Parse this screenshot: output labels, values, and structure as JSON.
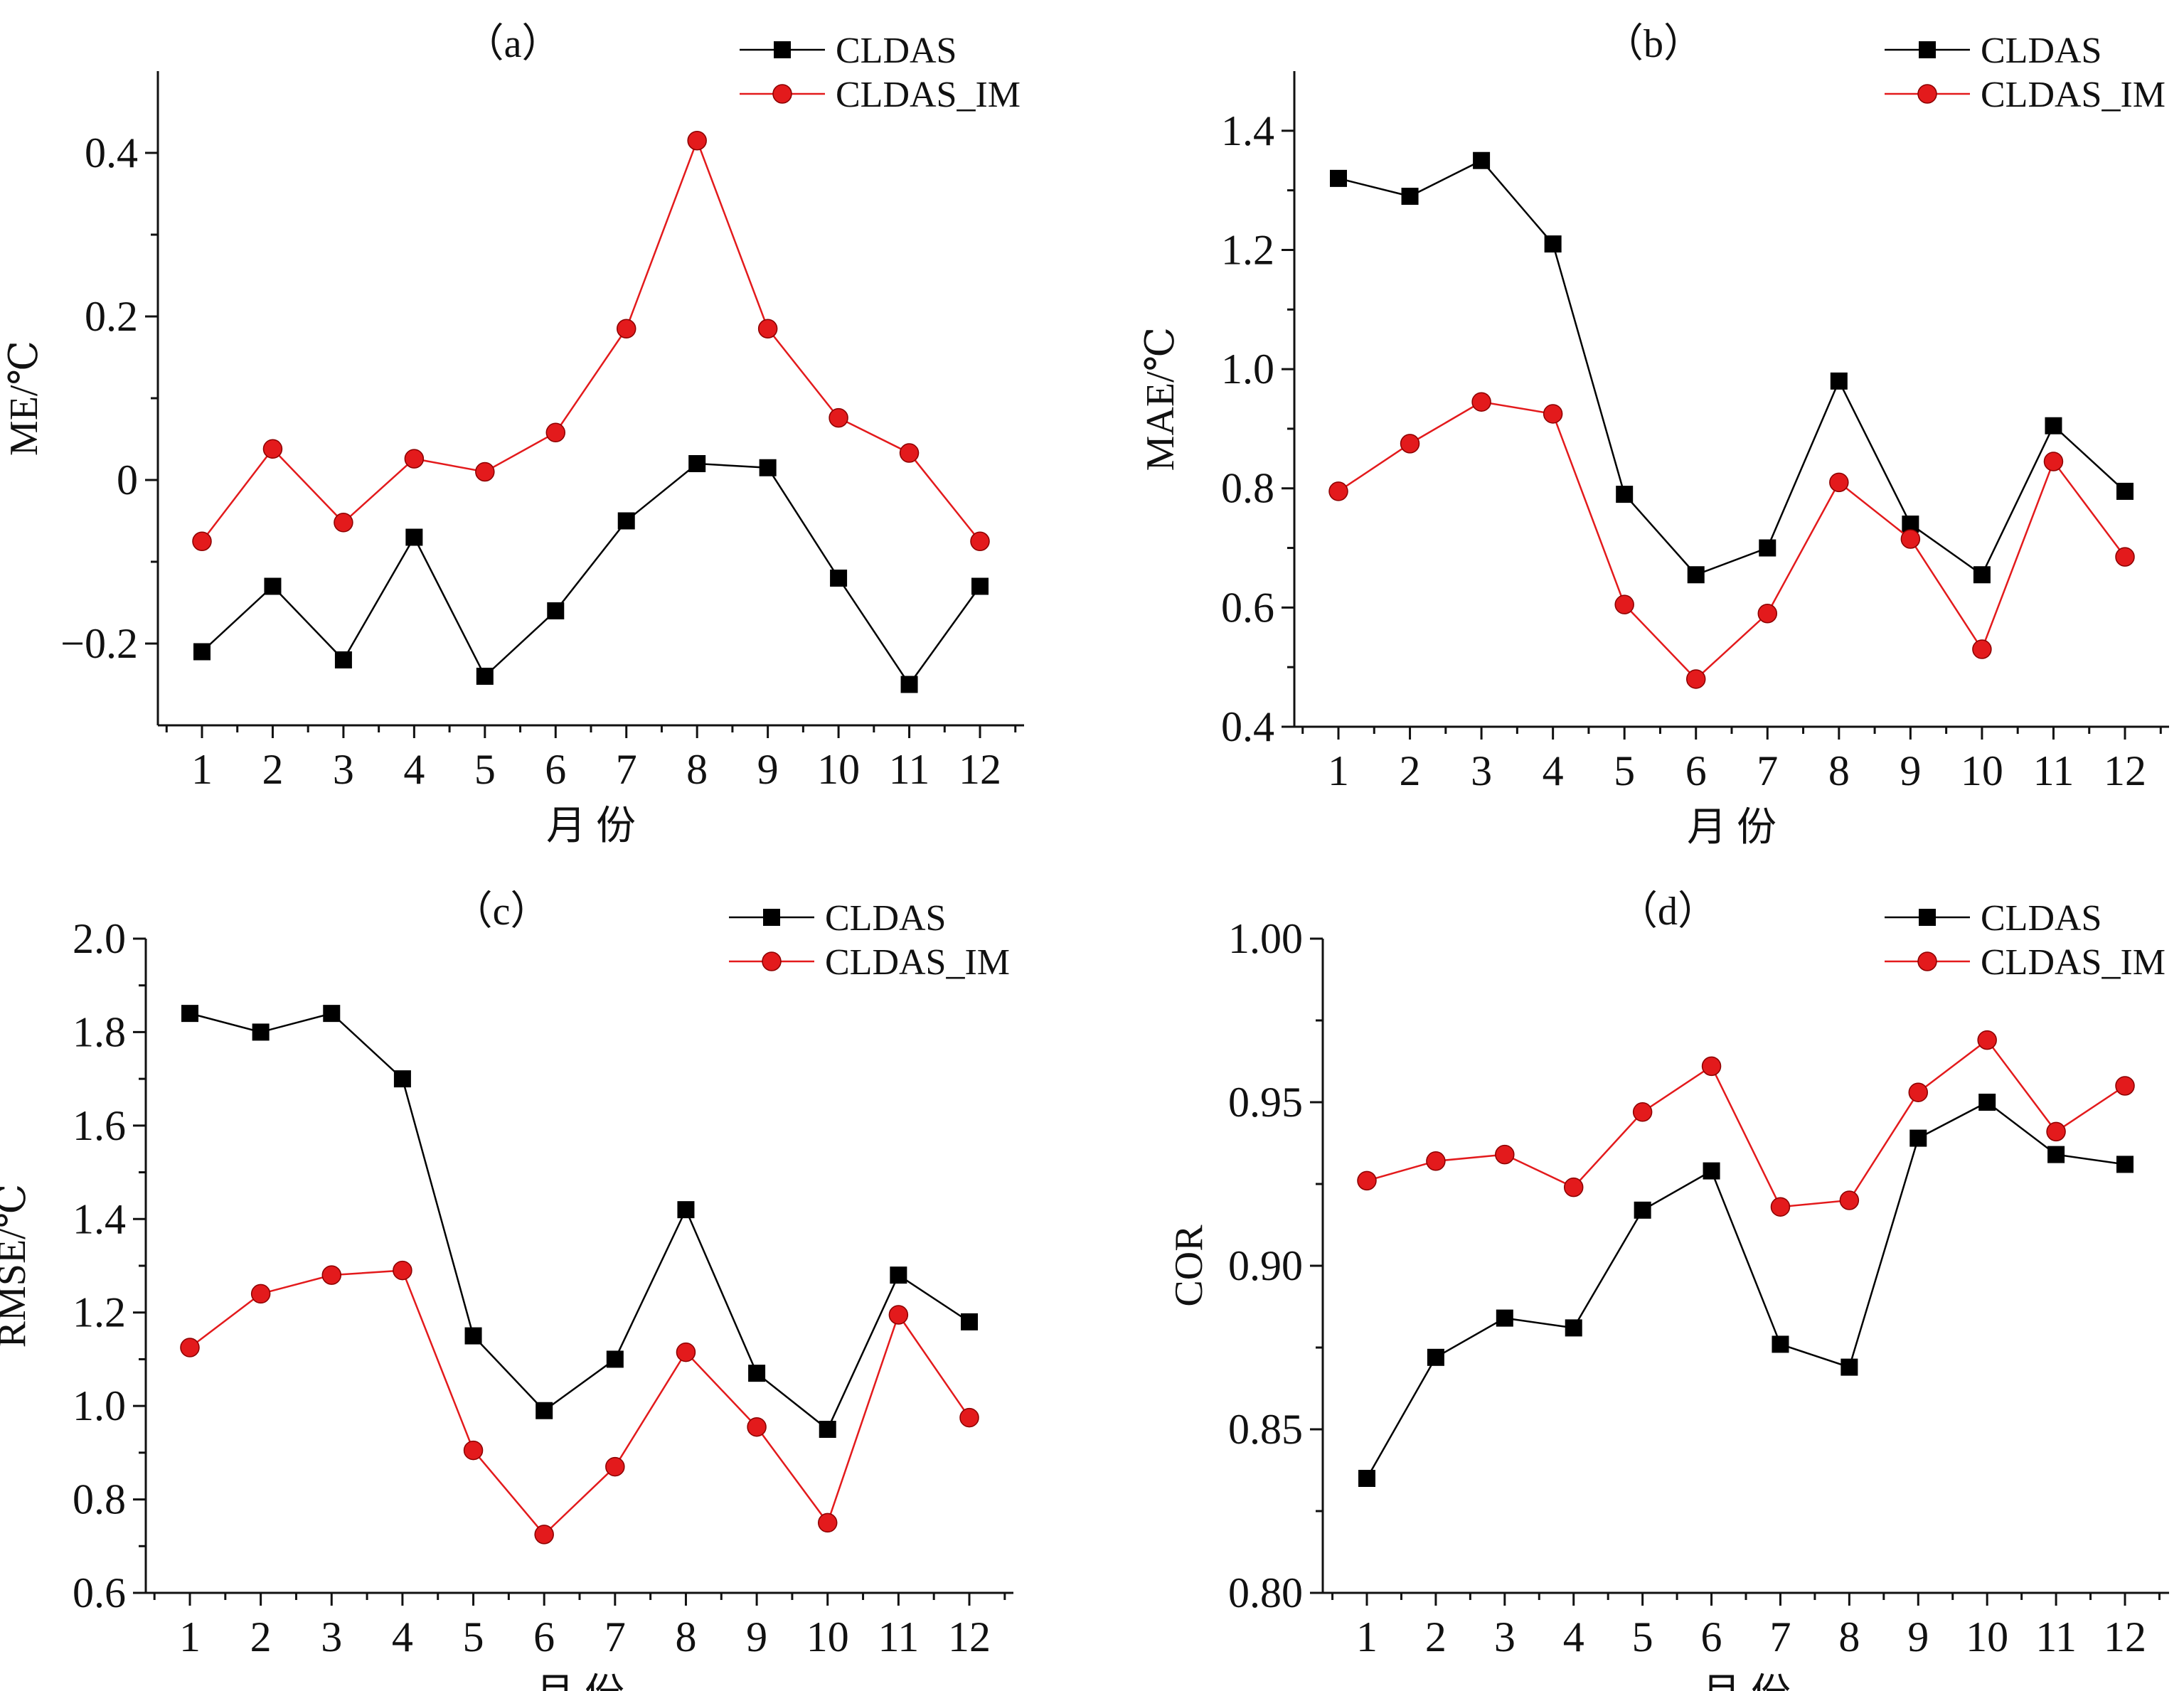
{
  "figure": {
    "background": "#ffffff"
  },
  "chart_data": [
    {
      "type": "line",
      "panel_label": "（a）",
      "xlabel": "月  份",
      "ylabel": "ME/℃",
      "categories": [
        "1",
        "2",
        "3",
        "4",
        "5",
        "6",
        "7",
        "8",
        "9",
        "10",
        "11",
        "12"
      ],
      "ylim": [
        -0.3,
        0.5
      ],
      "yticks": [
        -0.2,
        0,
        0.2,
        0.4
      ],
      "ytick_labels": [
        "−0.2",
        "0",
        "0.2",
        "0.4"
      ],
      "grid": false,
      "legend": "top-right",
      "series": [
        {
          "name": "CLDAS",
          "color": "#000000",
          "marker": "square",
          "values": [
            -0.21,
            -0.13,
            -0.22,
            -0.07,
            -0.24,
            -0.16,
            -0.05,
            0.02,
            0.015,
            -0.12,
            -0.25,
            -0.13
          ]
        },
        {
          "name": "CLDAS_IM",
          "color": "#e31a1c",
          "marker": "circle",
          "values": [
            -0.075,
            0.038,
            -0.052,
            0.026,
            0.01,
            0.058,
            0.185,
            0.415,
            0.185,
            0.076,
            0.033,
            -0.075
          ]
        }
      ]
    },
    {
      "type": "line",
      "panel_label": "（b）",
      "xlabel": "月  份",
      "ylabel": "MAE/℃",
      "categories": [
        "1",
        "2",
        "3",
        "4",
        "5",
        "6",
        "7",
        "8",
        "9",
        "10",
        "11",
        "12"
      ],
      "ylim": [
        0.4,
        1.5
      ],
      "yticks": [
        0.4,
        0.6,
        0.8,
        1.0,
        1.2,
        1.4
      ],
      "ytick_labels": [
        "0.4",
        "0.6",
        "0.8",
        "1.0",
        "1.2",
        "1.4"
      ],
      "grid": false,
      "legend": "top-right",
      "series": [
        {
          "name": "CLDAS",
          "color": "#000000",
          "marker": "square",
          "values": [
            1.32,
            1.29,
            1.35,
            1.21,
            0.79,
            0.655,
            0.7,
            0.98,
            0.74,
            0.655,
            0.905,
            0.795
          ]
        },
        {
          "name": "CLDAS_IM",
          "color": "#e31a1c",
          "marker": "circle",
          "values": [
            0.795,
            0.875,
            0.945,
            0.925,
            0.605,
            0.48,
            0.59,
            0.81,
            0.715,
            0.53,
            0.845,
            0.685
          ]
        }
      ]
    },
    {
      "type": "line",
      "panel_label": "（c）",
      "xlabel": "月  份",
      "ylabel": "RMSE/℃",
      "categories": [
        "1",
        "2",
        "3",
        "4",
        "5",
        "6",
        "7",
        "8",
        "9",
        "10",
        "11",
        "12"
      ],
      "ylim": [
        0.6,
        2.0
      ],
      "yticks": [
        0.6,
        0.8,
        1.0,
        1.2,
        1.4,
        1.6,
        1.8,
        2.0
      ],
      "ytick_labels": [
        "0.6",
        "0.8",
        "1.0",
        "1.2",
        "1.4",
        "1.6",
        "1.8",
        "2.0"
      ],
      "grid": false,
      "legend": "top-right",
      "series": [
        {
          "name": "CLDAS",
          "color": "#000000",
          "marker": "square",
          "values": [
            1.84,
            1.8,
            1.84,
            1.7,
            1.15,
            0.99,
            1.1,
            1.42,
            1.07,
            0.95,
            1.28,
            1.18
          ]
        },
        {
          "name": "CLDAS_IM",
          "color": "#e31a1c",
          "marker": "circle",
          "values": [
            1.125,
            1.24,
            1.28,
            1.29,
            0.905,
            0.725,
            0.87,
            1.115,
            0.955,
            0.75,
            1.195,
            0.975
          ]
        }
      ]
    },
    {
      "type": "line",
      "panel_label": "（d）",
      "xlabel": "月  份",
      "ylabel": "COR",
      "categories": [
        "1",
        "2",
        "3",
        "4",
        "5",
        "6",
        "7",
        "8",
        "9",
        "10",
        "11",
        "12"
      ],
      "ylim": [
        0.8,
        1.0
      ],
      "yticks": [
        0.8,
        0.85,
        0.9,
        0.95,
        1.0
      ],
      "ytick_labels": [
        "0.80",
        "0.85",
        "0.90",
        "0.95",
        "1.00"
      ],
      "grid": false,
      "legend": "top-right",
      "series": [
        {
          "name": "CLDAS",
          "color": "#000000",
          "marker": "square",
          "values": [
            0.835,
            0.872,
            0.884,
            0.881,
            0.917,
            0.929,
            0.876,
            0.869,
            0.939,
            0.95,
            0.934,
            0.931
          ]
        },
        {
          "name": "CLDAS_IM",
          "color": "#e31a1c",
          "marker": "circle",
          "values": [
            0.926,
            0.932,
            0.934,
            0.924,
            0.947,
            0.961,
            0.918,
            0.92,
            0.953,
            0.969,
            0.941,
            0.955
          ]
        }
      ]
    }
  ]
}
